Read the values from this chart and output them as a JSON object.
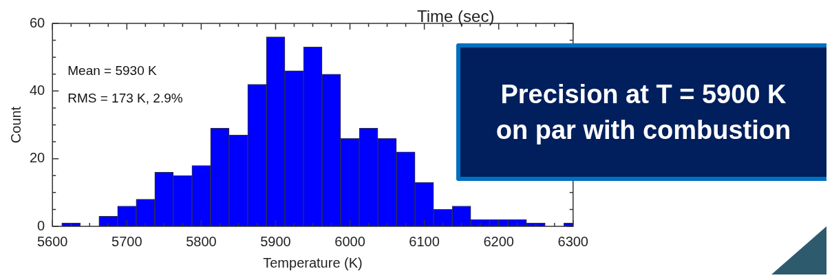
{
  "chart_data": {
    "type": "histogram",
    "xlabel": "Temperature (K)",
    "ylabel": "Count",
    "bins": [
      5612.5,
      5637.5,
      5662.5,
      5687.5,
      5712.5,
      5737.5,
      5762.5,
      5787.5,
      5812.5,
      5837.5,
      5862.5,
      5887.5,
      5912.5,
      5937.5,
      5962.5,
      5987.5,
      6012.5,
      6037.5,
      6062.5,
      6087.5,
      6112.5,
      6137.5,
      6162.5,
      6187.5,
      6212.5,
      6237.5,
      6262.5,
      6287.5,
      6312.5
    ],
    "values": [
      1,
      0,
      3,
      6,
      8,
      16,
      15,
      18,
      29,
      27,
      42,
      56,
      46,
      53,
      45,
      26,
      29,
      26,
      22,
      13,
      5,
      6,
      2,
      2,
      2,
      1,
      0,
      1
    ],
    "color": "#0000ff",
    "xlim": [
      5600,
      6300
    ],
    "xticks": [
      5600,
      {
        "value": 5625,
        "label": null
      },
      {
        "value": 5650,
        "label": null
      },
      {
        "value": 5675,
        "label": null
      },
      5700,
      {
        "value": 5725,
        "label": null
      },
      {
        "value": 5750,
        "label": null
      },
      {
        "value": 5775,
        "label": null
      },
      5800,
      {
        "value": 5825,
        "label": null
      },
      {
        "value": 5850,
        "label": null
      },
      {
        "value": 5875,
        "label": null
      },
      5900,
      {
        "value": 5925,
        "label": null
      },
      {
        "value": 5950,
        "label": null
      },
      {
        "value": 5975,
        "label": null
      },
      6000,
      {
        "value": 6025,
        "label": null
      },
      {
        "value": 6050,
        "label": null
      },
      {
        "value": 6075,
        "label": null
      },
      6100,
      {
        "value": 6125,
        "label": null
      },
      {
        "value": 6150,
        "label": null
      },
      {
        "value": 6175,
        "label": null
      },
      6200,
      {
        "value": 6225,
        "label": null
      },
      {
        "value": 6250,
        "label": null
      },
      {
        "value": 6275,
        "label": null
      },
      6300
    ],
    "ylim": [
      0,
      60
    ],
    "yticks": [
      0,
      {
        "value": 5,
        "label": null
      },
      {
        "value": 10,
        "label": null
      },
      {
        "value": 15,
        "label": null
      },
      20,
      {
        "value": 25,
        "label": null
      },
      {
        "value": 30,
        "label": null
      },
      {
        "value": 35,
        "label": null
      },
      40,
      {
        "value": 45,
        "label": null
      },
      {
        "value": 50,
        "label": null
      },
      {
        "value": 55,
        "label": null
      },
      60
    ],
    "annotations": [
      "Mean = 5930 K",
      "RMS = 173 K, 2.9%",
      "Time (sec)",
      "Precision at T = 5900 K on par with combustion"
    ]
  }
}
